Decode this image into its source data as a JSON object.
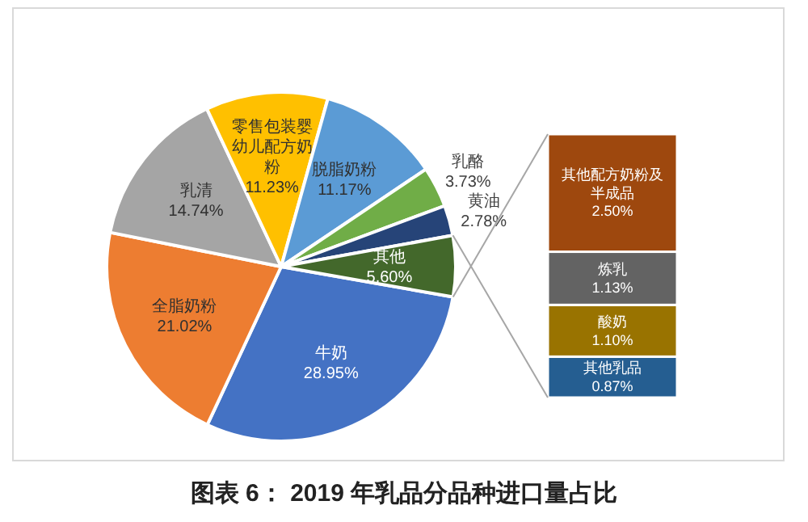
{
  "chart_data": [
    {
      "type": "pie",
      "title": "图表 6： 2019 年乳品分品种进口量占比",
      "categories": [
        "牛奶",
        "全脂奶粉",
        "乳清",
        "零售包装婴幼儿配方奶粉",
        "脱脂奶粉",
        "乳酪",
        "黄油",
        "其他"
      ],
      "values": [
        28.95,
        21.02,
        14.74,
        11.23,
        11.17,
        3.73,
        2.78,
        5.6
      ],
      "value_labels": [
        "28.95%",
        "21.02%",
        "14.74%",
        "11.23%",
        "11.17%",
        "3.73%",
        "2.78%",
        "5.60%"
      ],
      "colors": [
        "#4472c4",
        "#ed7d31",
        "#a5a5a5",
        "#ffc000",
        "#5b9bd5",
        "#70ad47",
        "#264478",
        "#43682b"
      ],
      "legend": false
    },
    {
      "type": "bar",
      "stacked": true,
      "categories": [
        null
      ],
      "series": [
        {
          "name": "其他乳品",
          "color": "#255e91",
          "values": [
            0.87
          ],
          "value_labels": [
            "0.87%"
          ]
        },
        {
          "name": "酸奶",
          "color": "#997300",
          "values": [
            1.1
          ],
          "value_labels": [
            "1.10%"
          ]
        },
        {
          "name": "炼乳",
          "color": "#636363",
          "values": [
            1.13
          ],
          "value_labels": [
            "1.13%"
          ]
        },
        {
          "name": "其他配方奶粉及半成品",
          "color": "#9e480e",
          "values": [
            2.5
          ],
          "value_labels": [
            "2.50%"
          ]
        }
      ],
      "legend": false
    }
  ]
}
